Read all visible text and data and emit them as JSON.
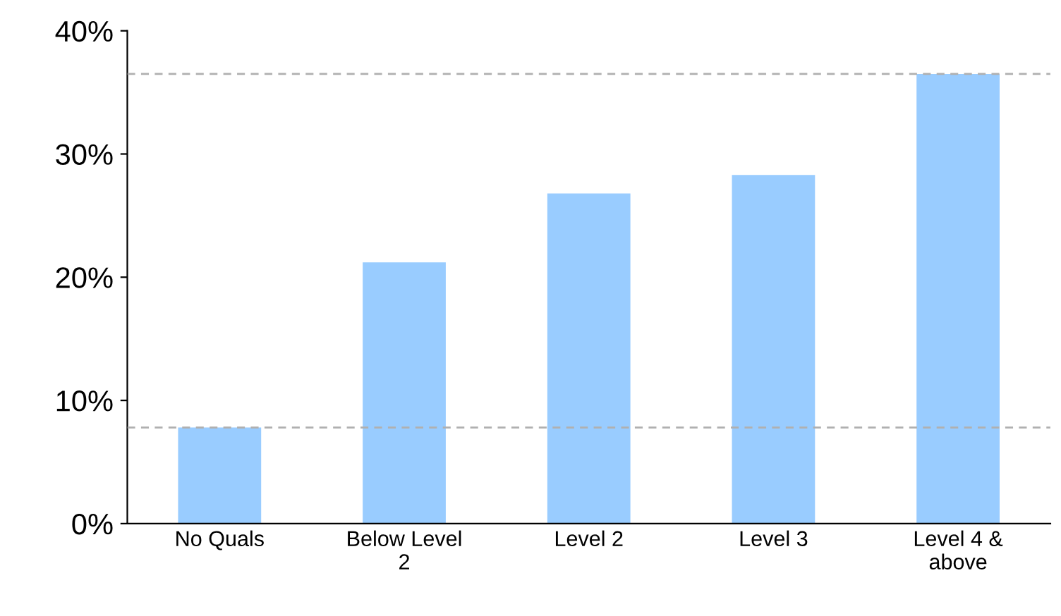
{
  "chart_data": {
    "type": "bar",
    "categories": [
      "No Quals",
      "Below Level\n2",
      "Level 2",
      "Level 3",
      "Level 4 &\nabove"
    ],
    "values": [
      7.8,
      21.2,
      26.8,
      28.3,
      36.5
    ],
    "color": "#99ccff",
    "ylim": [
      0,
      40
    ],
    "yticks": [
      {
        "value": 0,
        "label": "0%"
      },
      {
        "value": 10,
        "label": "10%"
      },
      {
        "value": 20,
        "label": "20%"
      },
      {
        "value": 30,
        "label": "30%"
      },
      {
        "value": 40,
        "label": "40%"
      }
    ],
    "ref_lines": [
      {
        "axis": "y",
        "value": 7.8,
        "color": "#b0b0b0",
        "line_style": "dashed"
      },
      {
        "axis": "y",
        "value": 36.5,
        "color": "#b0b0b0",
        "line_style": "dashed"
      }
    ],
    "grid": false
  }
}
